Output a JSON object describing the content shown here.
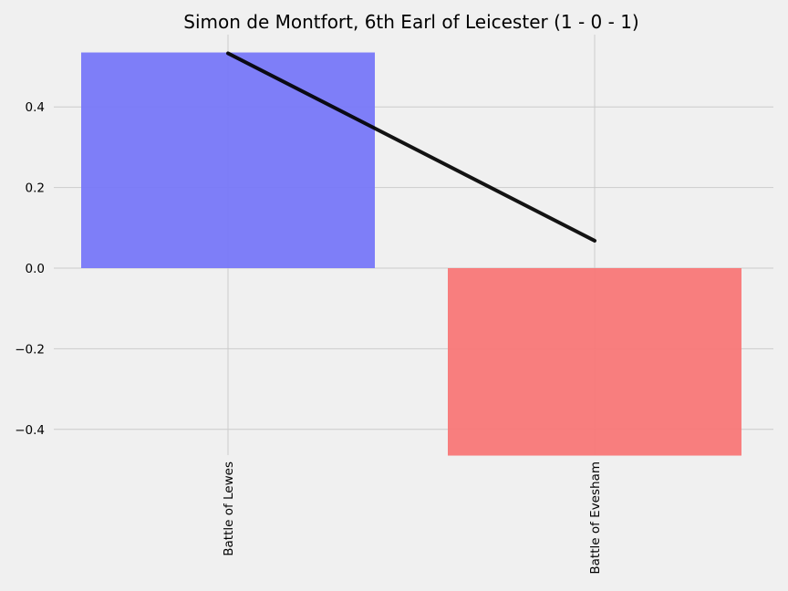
{
  "chart_data": {
    "type": "bar",
    "title": "Simon de Montfort, 6th Earl of Leicester (1 - 0 - 1)",
    "xlabel": "",
    "ylabel": "",
    "categories": [
      "Battle of Lewes",
      "Battle of Evesham"
    ],
    "values": [
      0.535,
      -0.465
    ],
    "bar_colors": [
      "#7777f8",
      "#f87777"
    ],
    "line": {
      "values": [
        0.533,
        0.068
      ],
      "color": "#000000"
    },
    "ylim": [
      -0.465,
      0.58
    ],
    "yticks": [
      -0.4,
      -0.2,
      0.0,
      0.2,
      0.4
    ],
    "ytick_labels": [
      "−0.4",
      "−0.2",
      "0.0",
      "0.2",
      "0.4"
    ],
    "grid": true,
    "legend": "none",
    "background": "#f0f0f0"
  }
}
